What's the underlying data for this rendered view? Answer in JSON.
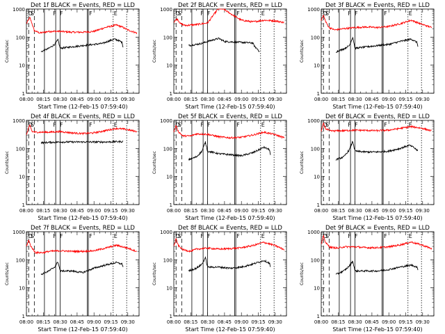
{
  "chart_data": {
    "type": "line",
    "x_axis": {
      "label": "Start Time (12-Feb-15 07:59:40)",
      "range_minutes": [
        0,
        100
      ],
      "ticks": [
        "08:00",
        "08:15",
        "08:30",
        "08:45",
        "09:00",
        "09:15",
        "09:30"
      ]
    },
    "y_axis": {
      "label": "Counts/sec",
      "scale": "log",
      "range": [
        1,
        1000
      ],
      "ticks": [
        "1",
        "10",
        "100",
        "1000"
      ]
    },
    "colors": {
      "events": "#000000",
      "lld": "#ff0000"
    },
    "markers": {
      "dashed": [
        2,
        7
      ],
      "solid": [
        16,
        26,
        30,
        54,
        55
      ],
      "dotted": [
        77,
        89
      ],
      "letters": [
        {
          "text": "D",
          "at": 1
        },
        {
          "text": "S",
          "at": 3
        },
        {
          "text": "F",
          "at": 23
        },
        {
          "text": "F",
          "at": 29
        },
        {
          "text": "F",
          "at": 55
        },
        {
          "text": "E",
          "at": 77
        }
      ]
    },
    "panels": [
      {
        "title": "Det 1f  BLACK = Events, RED = LLD",
        "lld": [
          [
            0,
            300
          ],
          [
            3,
            500
          ],
          [
            5,
            300
          ],
          [
            7,
            170
          ],
          [
            12,
            140
          ],
          [
            20,
            160
          ],
          [
            30,
            160
          ],
          [
            40,
            150
          ],
          [
            50,
            150
          ],
          [
            60,
            160
          ],
          [
            70,
            220
          ],
          [
            80,
            270
          ],
          [
            85,
            230
          ],
          [
            90,
            180
          ],
          [
            98,
            140
          ]
        ],
        "events": [
          [
            13,
            30
          ],
          [
            20,
            40
          ],
          [
            25,
            55
          ],
          [
            28,
            80
          ],
          [
            30,
            40
          ],
          [
            40,
            45
          ],
          [
            50,
            50
          ],
          [
            60,
            55
          ],
          [
            68,
            60
          ],
          [
            72,
            70
          ],
          [
            78,
            85
          ],
          [
            82,
            75
          ],
          [
            85,
            65
          ],
          [
            86,
            40
          ]
        ]
      },
      {
        "title": "Det 2f  BLACK = Events, RED = LLD",
        "lld": [
          [
            0,
            350
          ],
          [
            3,
            450
          ],
          [
            6,
            300
          ],
          [
            10,
            260
          ],
          [
            20,
            280
          ],
          [
            30,
            320
          ],
          [
            35,
            600
          ],
          [
            40,
            1100
          ],
          [
            45,
            950
          ],
          [
            50,
            700
          ],
          [
            60,
            400
          ],
          [
            70,
            350
          ],
          [
            80,
            400
          ],
          [
            90,
            380
          ],
          [
            98,
            330
          ]
        ],
        "events": [
          [
            13,
            50
          ],
          [
            20,
            55
          ],
          [
            25,
            60
          ],
          [
            30,
            70
          ],
          [
            35,
            80
          ],
          [
            40,
            90
          ],
          [
            45,
            70
          ],
          [
            50,
            68
          ],
          [
            60,
            65
          ],
          [
            70,
            62
          ],
          [
            72,
            45
          ],
          [
            75,
            35
          ],
          [
            76,
            30
          ]
        ]
      },
      {
        "title": "Det 3f  BLACK = Events, RED = LLD",
        "lld": [
          [
            0,
            400
          ],
          [
            2,
            600
          ],
          [
            4,
            350
          ],
          [
            7,
            220
          ],
          [
            12,
            180
          ],
          [
            20,
            200
          ],
          [
            30,
            220
          ],
          [
            40,
            230
          ],
          [
            50,
            220
          ],
          [
            60,
            240
          ],
          [
            70,
            300
          ],
          [
            80,
            400
          ],
          [
            88,
            300
          ],
          [
            98,
            220
          ]
        ],
        "events": [
          [
            13,
            30
          ],
          [
            20,
            38
          ],
          [
            25,
            50
          ],
          [
            28,
            100
          ],
          [
            30,
            40
          ],
          [
            40,
            45
          ],
          [
            50,
            50
          ],
          [
            60,
            55
          ],
          [
            70,
            70
          ],
          [
            80,
            85
          ],
          [
            85,
            65
          ],
          [
            86,
            45
          ]
        ]
      },
      {
        "title": "Det 4f  BLACK = Events, RED = LLD",
        "lld": [
          [
            0,
            300
          ],
          [
            3,
            700
          ],
          [
            5,
            400
          ],
          [
            8,
            380
          ],
          [
            20,
            380
          ],
          [
            30,
            400
          ],
          [
            40,
            360
          ],
          [
            50,
            340
          ],
          [
            60,
            360
          ],
          [
            70,
            430
          ],
          [
            80,
            520
          ],
          [
            88,
            480
          ],
          [
            98,
            400
          ]
        ],
        "events": [
          [
            13,
            160
          ],
          [
            20,
            165
          ],
          [
            30,
            170
          ],
          [
            40,
            170
          ],
          [
            50,
            170
          ],
          [
            60,
            170
          ],
          [
            70,
            170
          ],
          [
            80,
            175
          ],
          [
            86,
            175
          ]
        ]
      },
      {
        "title": "Det 5f  BLACK = Events, RED = LLD",
        "lld": [
          [
            0,
            400
          ],
          [
            2,
            650
          ],
          [
            4,
            400
          ],
          [
            8,
            280
          ],
          [
            15,
            280
          ],
          [
            20,
            330
          ],
          [
            30,
            320
          ],
          [
            40,
            260
          ],
          [
            50,
            240
          ],
          [
            60,
            250
          ],
          [
            70,
            300
          ],
          [
            80,
            380
          ],
          [
            90,
            310
          ],
          [
            98,
            240
          ]
        ],
        "events": [
          [
            13,
            40
          ],
          [
            20,
            50
          ],
          [
            25,
            80
          ],
          [
            28,
            170
          ],
          [
            30,
            80
          ],
          [
            40,
            65
          ],
          [
            50,
            60
          ],
          [
            60,
            55
          ],
          [
            70,
            70
          ],
          [
            80,
            110
          ],
          [
            85,
            90
          ],
          [
            86,
            50
          ]
        ]
      },
      {
        "title": "Det 6f  BLACK = Events, RED = LLD",
        "lld": [
          [
            0,
            400
          ],
          [
            2,
            800
          ],
          [
            4,
            500
          ],
          [
            8,
            420
          ],
          [
            20,
            430
          ],
          [
            30,
            450
          ],
          [
            40,
            440
          ],
          [
            50,
            430
          ],
          [
            60,
            450
          ],
          [
            70,
            520
          ],
          [
            80,
            600
          ],
          [
            90,
            520
          ],
          [
            98,
            420
          ]
        ],
        "events": [
          [
            13,
            40
          ],
          [
            20,
            50
          ],
          [
            25,
            90
          ],
          [
            28,
            180
          ],
          [
            30,
            80
          ],
          [
            40,
            75
          ],
          [
            50,
            75
          ],
          [
            60,
            80
          ],
          [
            70,
            100
          ],
          [
            78,
            130
          ],
          [
            82,
            110
          ],
          [
            86,
            80
          ]
        ]
      },
      {
        "title": "Det 7f  BLACK = Events, RED = LLD",
        "lld": [
          [
            0,
            300
          ],
          [
            2,
            500
          ],
          [
            4,
            300
          ],
          [
            8,
            180
          ],
          [
            15,
            180
          ],
          [
            20,
            200
          ],
          [
            30,
            210
          ],
          [
            40,
            200
          ],
          [
            50,
            200
          ],
          [
            60,
            210
          ],
          [
            70,
            260
          ],
          [
            80,
            330
          ],
          [
            90,
            260
          ],
          [
            98,
            200
          ]
        ],
        "events": [
          [
            13,
            30
          ],
          [
            20,
            40
          ],
          [
            25,
            55
          ],
          [
            28,
            85
          ],
          [
            30,
            40
          ],
          [
            40,
            40
          ],
          [
            50,
            35
          ],
          [
            60,
            50
          ],
          [
            70,
            65
          ],
          [
            80,
            80
          ],
          [
            85,
            70
          ],
          [
            86,
            55
          ]
        ]
      },
      {
        "title": "Det 8f  BLACK = Events, RED = LLD",
        "lld": [
          [
            0,
            300
          ],
          [
            2,
            550
          ],
          [
            4,
            320
          ],
          [
            8,
            230
          ],
          [
            15,
            200
          ],
          [
            20,
            240
          ],
          [
            30,
            260
          ],
          [
            40,
            240
          ],
          [
            50,
            250
          ],
          [
            60,
            270
          ],
          [
            70,
            320
          ],
          [
            80,
            420
          ],
          [
            90,
            320
          ],
          [
            98,
            230
          ]
        ],
        "events": [
          [
            13,
            40
          ],
          [
            20,
            50
          ],
          [
            25,
            70
          ],
          [
            28,
            120
          ],
          [
            30,
            55
          ],
          [
            40,
            55
          ],
          [
            50,
            50
          ],
          [
            60,
            55
          ],
          [
            70,
            70
          ],
          [
            80,
            95
          ],
          [
            85,
            75
          ],
          [
            86,
            50
          ]
        ]
      },
      {
        "title": "Det 9f  BLACK = Events, RED = LLD",
        "lld": [
          [
            0,
            350
          ],
          [
            2,
            700
          ],
          [
            4,
            400
          ],
          [
            8,
            280
          ],
          [
            15,
            260
          ],
          [
            20,
            290
          ],
          [
            30,
            290
          ],
          [
            40,
            270
          ],
          [
            50,
            270
          ],
          [
            60,
            290
          ],
          [
            70,
            340
          ],
          [
            80,
            430
          ],
          [
            90,
            330
          ],
          [
            98,
            250
          ]
        ],
        "events": [
          [
            13,
            30
          ],
          [
            20,
            40
          ],
          [
            25,
            60
          ],
          [
            28,
            90
          ],
          [
            30,
            40
          ],
          [
            40,
            40
          ],
          [
            50,
            40
          ],
          [
            60,
            45
          ],
          [
            70,
            55
          ],
          [
            80,
            65
          ],
          [
            85,
            55
          ],
          [
            86,
            40
          ]
        ]
      }
    ]
  }
}
